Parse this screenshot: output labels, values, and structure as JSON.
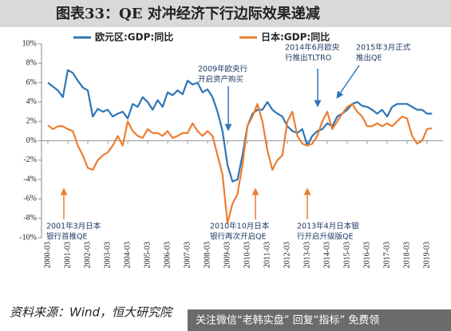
{
  "chart_data": {
    "type": "line",
    "title": "图表33：QE 对冲经济下行边际效果递减",
    "source": "资料来源：Wind，恒大研究院",
    "watermark": "关注微信“老韩实盘” 回复“指标” 免费领",
    "categories": [
      "2000-03",
      null,
      null,
      null,
      "2001-03",
      null,
      null,
      null,
      "2002-03",
      null,
      null,
      null,
      "2003-03",
      null,
      null,
      null,
      "2004-03",
      null,
      null,
      null,
      "2005-03",
      null,
      null,
      null,
      "2006-03",
      null,
      null,
      null,
      "2007-03",
      null,
      null,
      null,
      "2008-03",
      null,
      null,
      null,
      "2009-03",
      null,
      null,
      null,
      "2010-03",
      null,
      null,
      null,
      "2011-03",
      null,
      null,
      null,
      "2012-03",
      null,
      null,
      null,
      "2013-03",
      null,
      null,
      null,
      "2014-03",
      null,
      null,
      null,
      "2015-03",
      null,
      null,
      null,
      "2016-03",
      null,
      null,
      null,
      "2017-03",
      null,
      null,
      null,
      "2018-03",
      null,
      null,
      null,
      "2019-03",
      null
    ],
    "series": [
      {
        "name": "欧元区:GDP:同比",
        "color": "#2e75b6",
        "values": [
          6.0,
          5.6,
          5.2,
          4.5,
          7.3,
          7.0,
          6.2,
          5.5,
          5.2,
          2.5,
          3.3,
          3.0,
          3.2,
          2.5,
          2.8,
          3.0,
          2.3,
          3.8,
          3.5,
          4.5,
          4.0,
          3.2,
          4.2,
          3.5,
          5.0,
          4.7,
          5.2,
          4.8,
          6.2,
          5.8,
          6.0,
          5.0,
          5.3,
          4.5,
          3.0,
          1.0,
          -2.5,
          -4.2,
          -4.0,
          -1.5,
          1.5,
          2.8,
          3.2,
          3.2,
          4.0,
          3.2,
          2.8,
          2.5,
          1.5,
          1.0,
          0.8,
          1.2,
          -0.5,
          0.5,
          1.0,
          1.2,
          1.8,
          1.5,
          2.5,
          2.8,
          3.2,
          3.8,
          4.0,
          3.6,
          3.5,
          3.2,
          2.8,
          3.2,
          2.5,
          3.5,
          3.8,
          3.8,
          3.8,
          3.5,
          3.2,
          3.2,
          2.8,
          2.8
        ]
      },
      {
        "name": "日本:GDP:同比",
        "color": "#ed7d31",
        "values": [
          1.6,
          1.2,
          1.5,
          1.5,
          1.2,
          1.0,
          -0.5,
          -1.5,
          -2.8,
          -3.0,
          -2.0,
          -1.5,
          -1.2,
          -0.5,
          0.5,
          -0.5,
          2.0,
          1.0,
          0.5,
          0.3,
          1.2,
          0.8,
          0.8,
          0.5,
          1.0,
          0.3,
          0.5,
          0.8,
          0.8,
          1.8,
          1.0,
          0.5,
          1.0,
          0.5,
          -1.5,
          -3.5,
          -8.5,
          -6.5,
          -5.5,
          -2.5,
          1.5,
          2.5,
          3.8,
          2.0,
          -1.0,
          -3.0,
          -2.0,
          -1.5,
          2.0,
          3.0,
          0.5,
          -0.3,
          -0.5,
          -0.3,
          0.5,
          2.0,
          3.0,
          1.2,
          2.0,
          2.8,
          3.5,
          3.8,
          3.0,
          2.5,
          1.5,
          1.5,
          1.8,
          1.5,
          1.8,
          1.5,
          2.0,
          2.5,
          2.3,
          0.5,
          -0.3,
          0.0,
          1.2,
          1.3
        ]
      }
    ],
    "ylim": [
      -10,
      10
    ],
    "yticks": [
      {
        "value": -10,
        "label": "-10%"
      },
      {
        "value": -8,
        "label": "-8%"
      },
      {
        "value": -6,
        "label": "-6%"
      },
      {
        "value": -4,
        "label": "-4%"
      },
      {
        "value": -2,
        "label": "-2%"
      },
      {
        "value": 0,
        "label": "0%"
      },
      {
        "value": 2,
        "label": "2%"
      },
      {
        "value": 4,
        "label": "4%"
      },
      {
        "value": 6,
        "label": "6%"
      },
      {
        "value": 8,
        "label": "8%"
      },
      {
        "value": 10,
        "label": "10%"
      }
    ],
    "annotations": [
      {
        "lines": [
          "2009年欧央行",
          "开启资产购买"
        ],
        "color": "#2e75b6"
      },
      {
        "lines": [
          "2014年6月欧央",
          "行推出TLTRO"
        ],
        "color": "#2e75b6"
      },
      {
        "lines": [
          "2015年3月正式",
          "推出QE"
        ],
        "color": "#2e75b6"
      },
      {
        "lines": [
          "2001年3月日本",
          "银行首推QE"
        ],
        "color": "#ed7d31"
      },
      {
        "lines": [
          "2010年10月日本",
          "银行再次开启QE"
        ],
        "color": "#ed7d31"
      },
      {
        "lines": [
          "2013年4月日本银",
          "行开启升级版QE"
        ],
        "color": "#ed7d31"
      }
    ]
  }
}
